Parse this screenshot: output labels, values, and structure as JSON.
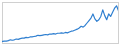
{
  "chart_data": {
    "type": "line",
    "x": [
      0,
      1,
      2,
      3,
      4,
      5,
      6,
      7,
      8,
      9,
      10,
      11,
      12,
      13,
      14,
      15,
      16,
      17,
      18,
      19,
      20,
      21,
      22,
      23,
      24,
      25,
      26,
      27,
      28,
      29,
      30,
      31,
      32,
      33,
      34,
      35,
      36,
      37,
      38,
      39,
      40,
      41,
      42,
      43,
      44,
      45,
      46,
      47,
      48,
      49,
      50,
      51,
      52,
      53,
      54,
      55,
      56,
      57,
      58,
      59
    ],
    "values": [
      5,
      6,
      6,
      7,
      9,
      8,
      9,
      11,
      10,
      12,
      13,
      13,
      15,
      14,
      16,
      16,
      17,
      18,
      20,
      19,
      20,
      21,
      22,
      21,
      23,
      23,
      24,
      23,
      25,
      25,
      26,
      25,
      27,
      26,
      28,
      30,
      31,
      33,
      35,
      38,
      42,
      40,
      44,
      50,
      56,
      62,
      72,
      60,
      54,
      58,
      66,
      82,
      68,
      58,
      72,
      66,
      76,
      86,
      92,
      80
    ],
    "color": "#2f7fd0",
    "xlim": [
      0,
      59
    ],
    "ylim": [
      0,
      100
    ],
    "tick_labels": false
  }
}
